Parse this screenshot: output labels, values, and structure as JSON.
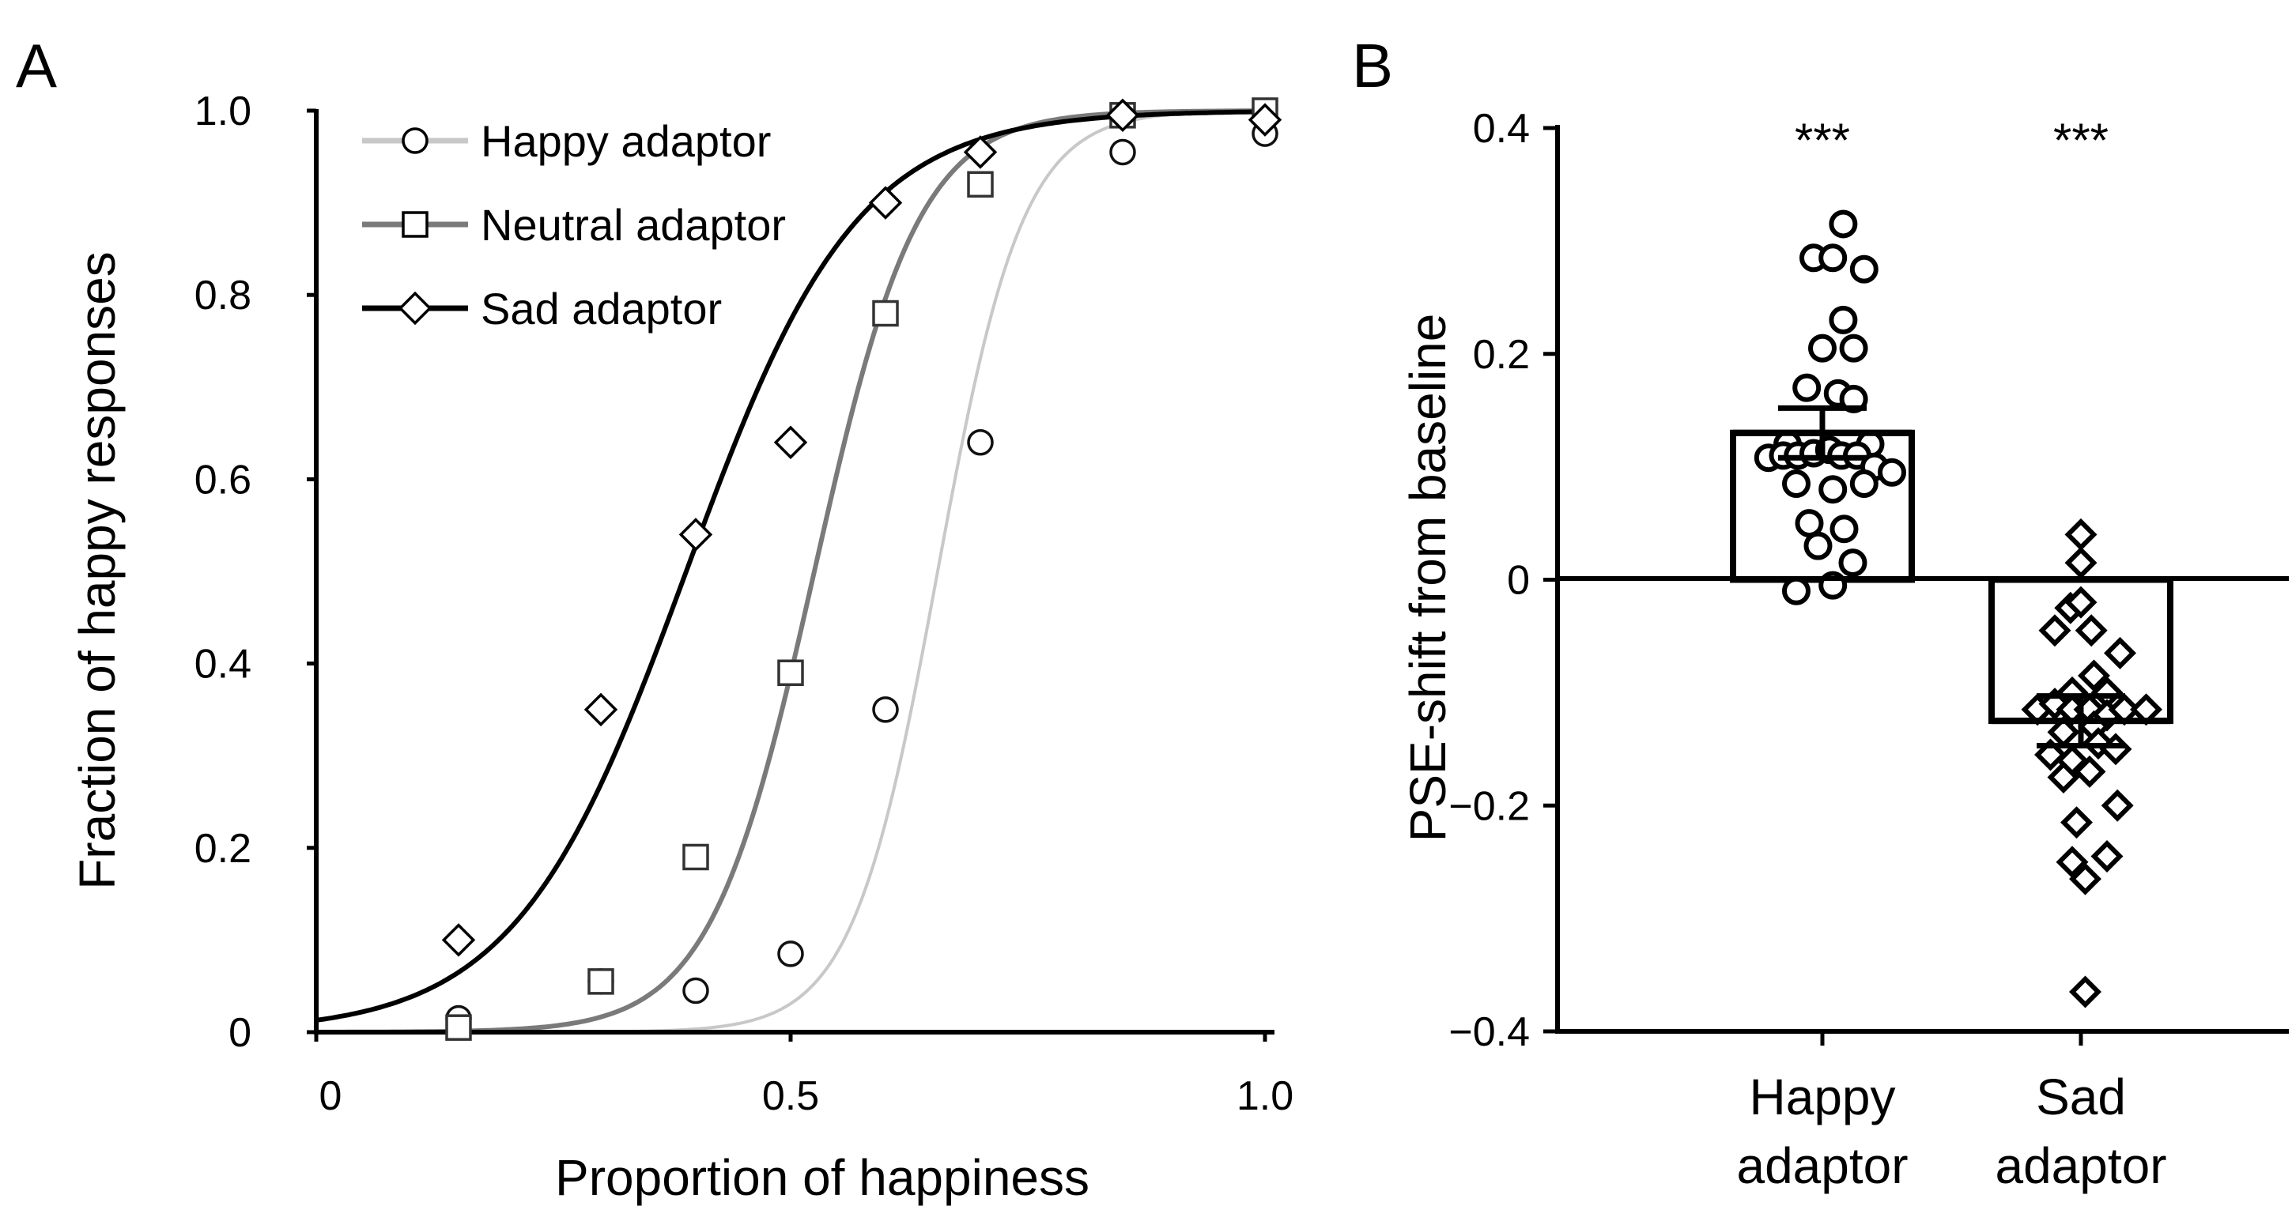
{
  "figure": {
    "panel_a_letter": "A",
    "panel_b_letter": "B"
  },
  "chart_data": [
    {
      "panel": "A",
      "type": "line",
      "xlabel": "Proportion of happiness",
      "ylabel": "Fraction of happy responses",
      "xlim": [
        0,
        1.0
      ],
      "ylim": [
        0,
        1.0
      ],
      "x_ticks": [
        {
          "value": 0,
          "label": "0"
        },
        {
          "value": 0.5,
          "label": "0.5"
        },
        {
          "value": 1.0,
          "label": "1.0"
        }
      ],
      "y_ticks": [
        {
          "value": 0,
          "label": "0"
        },
        {
          "value": 0.2,
          "label": "0.2"
        },
        {
          "value": 0.4,
          "label": "0.4"
        },
        {
          "value": 0.6,
          "label": "0.6"
        },
        {
          "value": 0.8,
          "label": "0.8"
        },
        {
          "value": 1.0,
          "label": "1.0"
        }
      ],
      "legend_position": "top-left",
      "series": [
        {
          "name": "Happy adaptor",
          "marker": "circle",
          "color": "#c8c8c8",
          "x": [
            0.15,
            0.3,
            0.4,
            0.5,
            0.6,
            0.7,
            0.85,
            1.0
          ],
          "y": [
            0.015,
            0.055,
            0.045,
            0.085,
            0.35,
            0.64,
            0.955,
            0.975
          ],
          "fit": {
            "mu": 0.655,
            "s": 0.045
          }
        },
        {
          "name": "Neutral adaptor",
          "marker": "square",
          "color": "#7a7a7a",
          "x": [
            0.15,
            0.3,
            0.4,
            0.5,
            0.6,
            0.7,
            0.85,
            1.0
          ],
          "y": [
            0.005,
            0.055,
            0.19,
            0.39,
            0.78,
            0.92,
            0.995,
            1.0
          ],
          "fit": {
            "mu": 0.525,
            "s": 0.055
          }
        },
        {
          "name": "Sad adaptor",
          "marker": "diamond",
          "color": "#000000",
          "x": [
            0.15,
            0.3,
            0.4,
            0.5,
            0.6,
            0.7,
            0.85,
            1.0
          ],
          "y": [
            0.1,
            0.35,
            0.54,
            0.64,
            0.9,
            0.955,
            0.995,
            0.99
          ],
          "fit": {
            "mu": 0.39,
            "s": 0.09
          }
        }
      ]
    },
    {
      "panel": "B",
      "type": "bar",
      "ylabel": "PSE-shift from baseline",
      "ylim": [
        -0.4,
        0.4
      ],
      "y_ticks": [
        {
          "value": 0.4,
          "label": "0.4"
        },
        {
          "value": 0.2,
          "label": "0.2"
        },
        {
          "value": 0,
          "label": "0"
        },
        {
          "value": -0.2,
          "label": "−0.2"
        },
        {
          "value": -0.4,
          "label": "−0.4"
        }
      ],
      "categories": [
        {
          "line1": "Happy",
          "line2": "adaptor"
        },
        {
          "line1": "Sad",
          "line2": "adaptor"
        }
      ],
      "bars": [
        {
          "name": "Happy adaptor",
          "mean": 0.13,
          "sem": 0.022,
          "significance": "***",
          "marker": "circle",
          "points": [
            {
              "offset": 0.24,
              "value": 0.315
            },
            {
              "offset": -0.1,
              "value": 0.285
            },
            {
              "offset": 0.12,
              "value": 0.285
            },
            {
              "offset": 0.48,
              "value": 0.275
            },
            {
              "offset": 0.24,
              "value": 0.23
            },
            {
              "offset": 0.0,
              "value": 0.205
            },
            {
              "offset": 0.36,
              "value": 0.205
            },
            {
              "offset": -0.18,
              "value": 0.17
            },
            {
              "offset": 0.18,
              "value": 0.165
            },
            {
              "offset": 0.36,
              "value": 0.16
            },
            {
              "offset": -0.4,
              "value": 0.12
            },
            {
              "offset": 0.55,
              "value": 0.12
            },
            {
              "offset": -0.62,
              "value": 0.108
            },
            {
              "offset": -0.45,
              "value": 0.11
            },
            {
              "offset": -0.28,
              "value": 0.11
            },
            {
              "offset": -0.1,
              "value": 0.112
            },
            {
              "offset": 0.08,
              "value": 0.115
            },
            {
              "offset": 0.22,
              "value": 0.11
            },
            {
              "offset": 0.4,
              "value": 0.11
            },
            {
              "offset": 0.6,
              "value": 0.1
            },
            {
              "offset": 0.8,
              "value": 0.095
            },
            {
              "offset": -0.3,
              "value": 0.085
            },
            {
              "offset": 0.12,
              "value": 0.08
            },
            {
              "offset": 0.48,
              "value": 0.085
            },
            {
              "offset": -0.15,
              "value": 0.05
            },
            {
              "offset": 0.25,
              "value": 0.045
            },
            {
              "offset": -0.05,
              "value": 0.03
            },
            {
              "offset": 0.35,
              "value": 0.015
            },
            {
              "offset": -0.3,
              "value": -0.01
            },
            {
              "offset": 0.12,
              "value": -0.005
            }
          ]
        },
        {
          "name": "Sad adaptor",
          "mean": -0.125,
          "sem": 0.022,
          "significance": "***",
          "marker": "diamond",
          "points": [
            {
              "offset": 0.0,
              "value": 0.04
            },
            {
              "offset": 0.0,
              "value": 0.015
            },
            {
              "offset": -0.12,
              "value": -0.025
            },
            {
              "offset": 0.0,
              "value": -0.02
            },
            {
              "offset": -0.3,
              "value": -0.045
            },
            {
              "offset": 0.12,
              "value": -0.045
            },
            {
              "offset": 0.45,
              "value": -0.065
            },
            {
              "offset": 0.15,
              "value": -0.085
            },
            {
              "offset": -0.1,
              "value": -0.1
            },
            {
              "offset": 0.3,
              "value": -0.1
            },
            {
              "offset": -0.5,
              "value": -0.115
            },
            {
              "offset": -0.3,
              "value": -0.11
            },
            {
              "offset": -0.1,
              "value": -0.115
            },
            {
              "offset": 0.1,
              "value": -0.115
            },
            {
              "offset": 0.3,
              "value": -0.12
            },
            {
              "offset": 0.5,
              "value": -0.115
            },
            {
              "offset": 0.75,
              "value": -0.115
            },
            {
              "offset": -0.2,
              "value": -0.135
            },
            {
              "offset": 0.15,
              "value": -0.13
            },
            {
              "offset": -0.35,
              "value": -0.155
            },
            {
              "offset": -0.1,
              "value": -0.16
            },
            {
              "offset": 0.2,
              "value": -0.145
            },
            {
              "offset": 0.4,
              "value": -0.15
            },
            {
              "offset": -0.2,
              "value": -0.175
            },
            {
              "offset": 0.1,
              "value": -0.17
            },
            {
              "offset": 0.42,
              "value": -0.2
            },
            {
              "offset": -0.05,
              "value": -0.215
            },
            {
              "offset": 0.3,
              "value": -0.245
            },
            {
              "offset": -0.1,
              "value": -0.25
            },
            {
              "offset": 0.05,
              "value": -0.265
            },
            {
              "offset": 0.05,
              "value": -0.365
            }
          ]
        }
      ]
    }
  ]
}
